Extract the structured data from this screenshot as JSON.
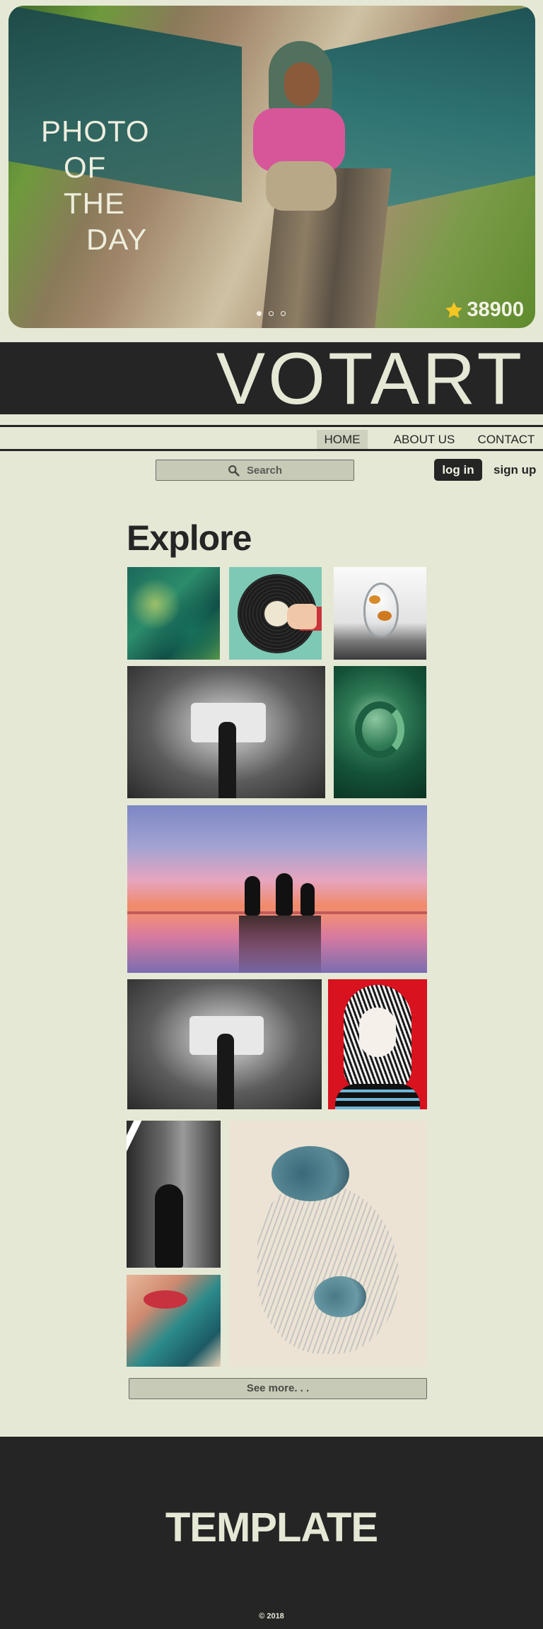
{
  "hero": {
    "title_lines": [
      "PHOTO",
      "OF",
      "THE",
      "DAY"
    ],
    "vote_count": "38900",
    "carousel_dots": 3,
    "active_dot": 1
  },
  "brand": {
    "name": "VOTART"
  },
  "nav": {
    "items": [
      "HOME",
      "ABOUT US",
      "CONTACT"
    ],
    "active": "HOME"
  },
  "search": {
    "label": "Search"
  },
  "auth": {
    "login_label": "log in",
    "signup_label": "sign up"
  },
  "explore": {
    "title": "Explore",
    "see_more_label": "See more. . ."
  },
  "footer": {
    "title": "TEMPLATE",
    "copyright": "© 2018"
  },
  "colors": {
    "background": "#e6e8d6",
    "dark": "#252525",
    "button": "#c8cab8",
    "star": "#f3c623"
  }
}
